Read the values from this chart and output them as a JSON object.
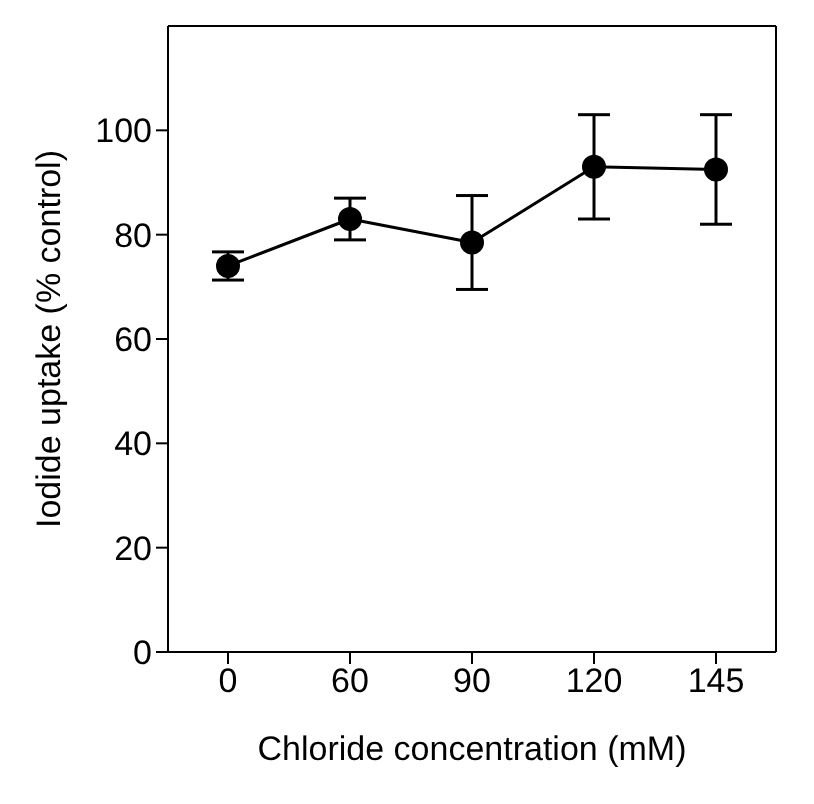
{
  "chart_data": {
    "type": "line",
    "xlabel": "Chloride concentration (mM)",
    "ylabel": "Iodide uptake (% control)",
    "categories": [
      "0",
      "60",
      "90",
      "120",
      "145"
    ],
    "series": [
      {
        "color": "#000000",
        "values": [
          74,
          83,
          78.5,
          93,
          92.5
        ],
        "errors": [
          2.7,
          4,
          9,
          10,
          10.5
        ]
      }
    ],
    "ylim": [
      0,
      120
    ],
    "yticks": [
      0,
      20,
      40,
      60,
      80,
      100
    ],
    "marker": "circle"
  }
}
